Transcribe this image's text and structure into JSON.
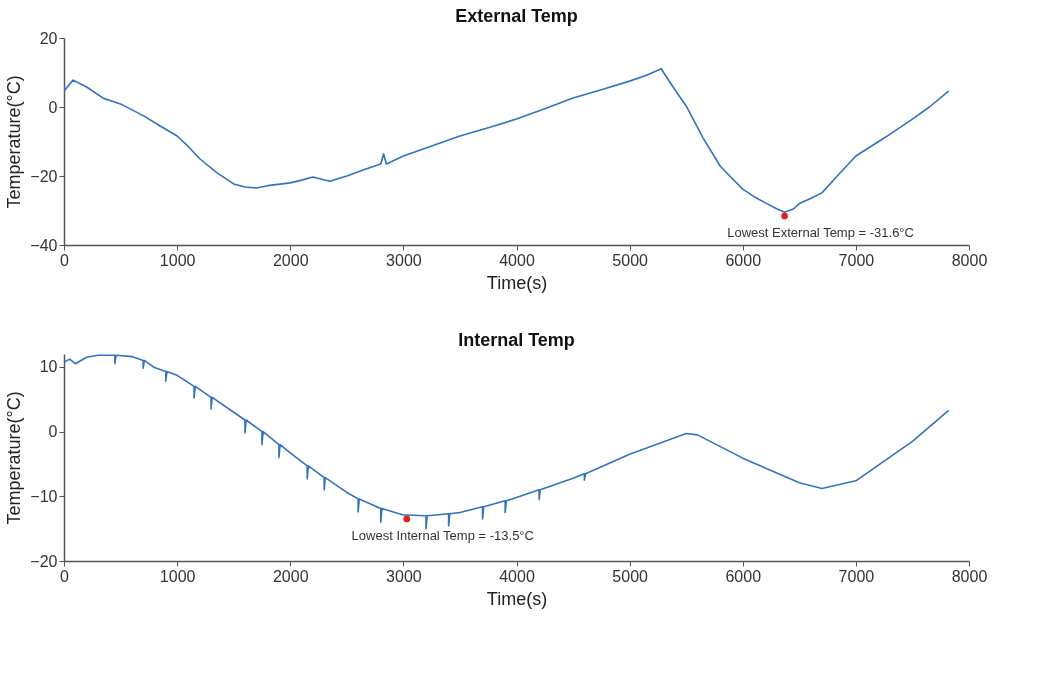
{
  "chart_data": [
    {
      "type": "line",
      "title": "External Temp",
      "xlabel": "Time(s)",
      "ylabel": "Temperature(°C)",
      "xlim": [
        0,
        8000
      ],
      "xticks": [
        0,
        1000,
        2000,
        3000,
        4000,
        5000,
        6000,
        7000,
        8000
      ],
      "ylim": [
        -40,
        20
      ],
      "yticks": [
        -40,
        -20,
        0,
        20
      ],
      "grid": false,
      "series": [
        {
          "color": "#3272c0",
          "x": [
            0,
            80,
            200,
            350,
            500,
            700,
            850,
            1000,
            1100,
            1200,
            1350,
            1500,
            1600,
            1700,
            1800,
            2000,
            2100,
            2200,
            2350,
            2500,
            2650,
            2800,
            2825,
            2850,
            3000,
            3250,
            3500,
            3750,
            4000,
            4250,
            4500,
            4750,
            5000,
            5150,
            5280,
            5300,
            5400,
            5500,
            5650,
            5800,
            5900,
            6000,
            6100,
            6200,
            6300,
            6370,
            6450,
            6500,
            6600,
            6700,
            6850,
            7000,
            7250,
            7500,
            7650,
            7820
          ],
          "values": [
            4.6,
            7.8,
            5.8,
            2.5,
            0.9,
            -2.5,
            -5.5,
            -8.4,
            -11.5,
            -15,
            -19,
            -22.3,
            -23.2,
            -23.5,
            -22.8,
            -22,
            -21.2,
            -20.3,
            -21.5,
            -20,
            -18.2,
            -16.5,
            -13.6,
            -16.5,
            -14.2,
            -11.3,
            -8.4,
            -6,
            -3.5,
            -0.5,
            2.6,
            5,
            7.5,
            9.2,
            11.1,
            10,
            5,
            0.3,
            -9,
            -17.1,
            -20.5,
            -23.8,
            -26,
            -27.8,
            -29.5,
            -30.5,
            -29.5,
            -28,
            -26.5,
            -24.9,
            -19.5,
            -14.2,
            -9,
            -3.5,
            0,
            4.6
          ]
        },
        {
          "type": "scatter",
          "color": "#e02020",
          "marker": "circle",
          "x": [
            6370
          ],
          "values": [
            -31.6
          ]
        }
      ],
      "annotations": [
        {
          "text": "Lowest External Temp = -31.6°C",
          "x": 6370,
          "y": -31.6
        }
      ]
    },
    {
      "type": "line",
      "title": "Internal Temp",
      "xlabel": "Time(s)",
      "ylabel": "Temperature(°C)",
      "xlim": [
        0,
        8000
      ],
      "xticks": [
        0,
        1000,
        2000,
        3000,
        4000,
        5000,
        6000,
        7000,
        8000
      ],
      "ylim": [
        -20,
        12
      ],
      "yticks": [
        -20,
        -10,
        0,
        10
      ],
      "grid": false,
      "series": [
        {
          "color": "#3272c0",
          "x": [
            0,
            50,
            100,
            150,
            200,
            300,
            450,
            450,
            460,
            600,
            700,
            700,
            710,
            800,
            900,
            900,
            910,
            1000,
            1150,
            1150,
            1160,
            1300,
            1300,
            1310,
            1500,
            1600,
            1600,
            1610,
            1750,
            1750,
            1760,
            1900,
            1900,
            1910,
            2000,
            2150,
            2150,
            2160,
            2300,
            2300,
            2310,
            2500,
            2600,
            2600,
            2610,
            2800,
            2800,
            2810,
            3000,
            3030,
            3200,
            3200,
            3210,
            3400,
            3400,
            3410,
            3500,
            3700,
            3700,
            3710,
            3900,
            3900,
            3910,
            4000,
            4200,
            4200,
            4210,
            4500,
            4600,
            4600,
            4610,
            5000,
            5500,
            5600,
            6000,
            6500,
            6700,
            7000,
            7500,
            7820
          ],
          "values": [
            10.7,
            11.2,
            10.5,
            11.0,
            11.5,
            11.8,
            11.8,
            10.5,
            11.8,
            11.6,
            11.0,
            9.8,
            11.0,
            9.9,
            9.3,
            7.8,
            9.3,
            8.7,
            7.0,
            5.2,
            7.0,
            5.3,
            3.5,
            5.3,
            3.0,
            1.8,
            -0.2,
            1.8,
            0,
            -2,
            0,
            -2,
            -4,
            -2,
            -3.3,
            -5.3,
            -7.3,
            -5.3,
            -7.1,
            -9,
            -7.1,
            -9.4,
            -10.4,
            -12.4,
            -10.4,
            -11.9,
            -14,
            -11.9,
            -12.9,
            -12.9,
            -13,
            -15,
            -13,
            -12.7,
            -14.6,
            -12.7,
            -12.5,
            -11.6,
            -13.5,
            -11.6,
            -10.7,
            -12.5,
            -10.7,
            -10.2,
            -9,
            -10.5,
            -9,
            -7.2,
            -6.5,
            -7.5,
            -6.5,
            -3.5,
            -0.3,
            -0.5,
            -4.1,
            -7.9,
            -8.8,
            -7.6,
            -1.5,
            3.3
          ]
        },
        {
          "type": "scatter",
          "color": "#e02020",
          "marker": "circle",
          "x": [
            3030
          ],
          "values": [
            -13.5
          ]
        }
      ],
      "annotations": [
        {
          "text": "Lowest Internal Temp = -13.5°C",
          "x": 3030,
          "y": -13.5
        }
      ]
    }
  ]
}
